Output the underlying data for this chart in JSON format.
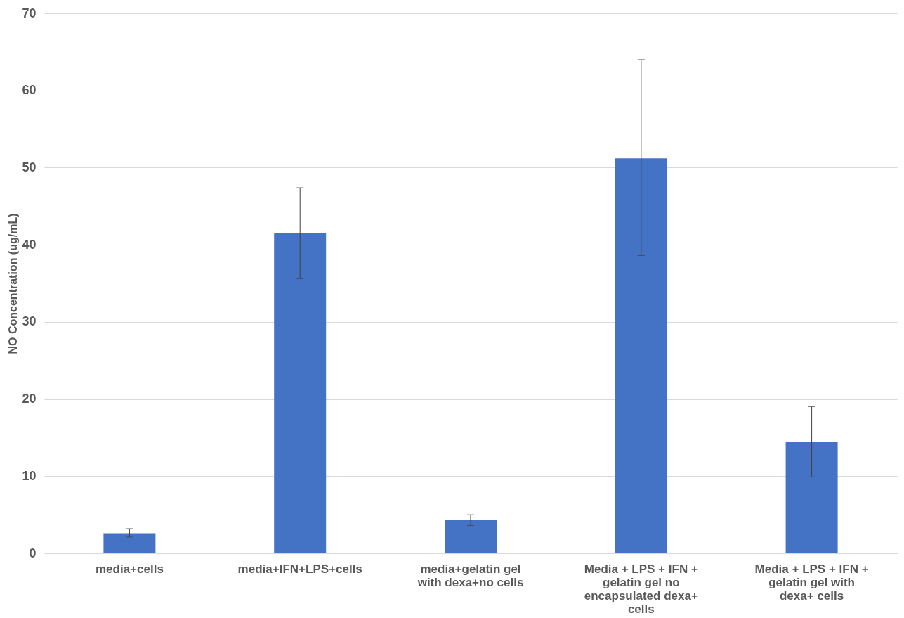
{
  "chart_data": {
    "type": "bar",
    "ylabel": "NO Concentration (ug/mL)",
    "categories": [
      "media+cells",
      "media+IFN+LPS+cells",
      "media+gelatin gel with dexa+no cells",
      "Media + LPS + IFN + gelatin gel no encapsulated dexa+ cells",
      "Media + LPS + IFN + gelatin gel with dexa+ cells"
    ],
    "values": [
      2.6,
      41.5,
      4.3,
      51.2,
      14.4
    ],
    "errors": [
      [
        2.1,
        3.2
      ],
      [
        35.6,
        47.4
      ],
      [
        3.6,
        5.0
      ],
      [
        38.6,
        64.0
      ],
      [
        9.9,
        19.0
      ]
    ],
    "color": "#4472c4",
    "ylim": [
      0,
      70
    ],
    "yticks": [
      0,
      10,
      20,
      30,
      40,
      50,
      60,
      70
    ],
    "grid": "y"
  }
}
